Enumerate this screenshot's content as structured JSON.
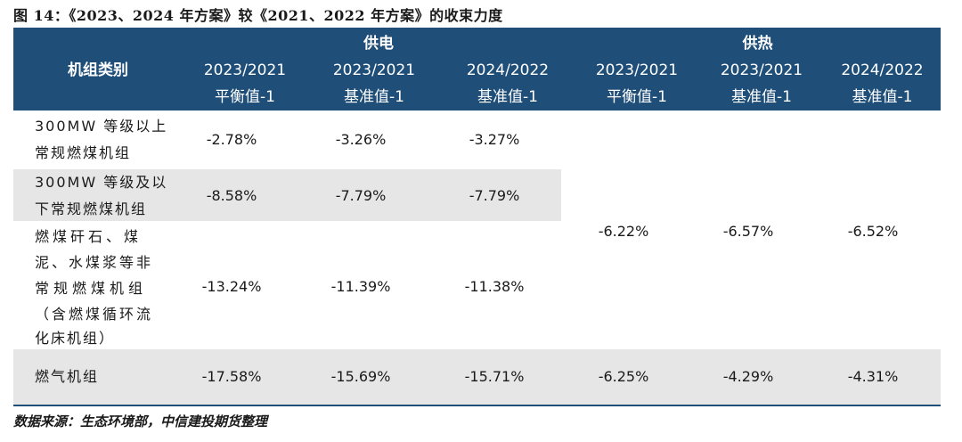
{
  "caption": "图 14：《2023、2024 年方案》较《2021、2022 年方案》的收束力度",
  "header": {
    "category": "机组类别",
    "group_power": "供电",
    "group_heat": "供热",
    "columns": [
      {
        "line1": "2023/2021",
        "line2": "平衡值-1"
      },
      {
        "line1": "2023/2021",
        "line2": "基准值-1"
      },
      {
        "line1": "2024/2022",
        "line2": "基准值-1"
      },
      {
        "line1": "2023/2021",
        "line2": "平衡值-1"
      },
      {
        "line1": "2023/2021",
        "line2": "基准值-1"
      },
      {
        "line1": "2024/2022",
        "line2": "基准值-1"
      }
    ]
  },
  "rows": [
    {
      "lines": [
        "300MW 等级以上",
        "常规燃煤机组"
      ],
      "power": [
        "-2.78%",
        "-3.26%",
        "-3.27%"
      ]
    },
    {
      "lines": [
        "300MW 等级及以",
        "下常规燃煤机组"
      ],
      "power": [
        "-8.58%",
        "-7.79%",
        "-7.79%"
      ]
    },
    {
      "lines": [
        "燃煤矸石、煤",
        "泥、水煤浆等非",
        "常规燃煤机组",
        "（含燃煤循环流",
        "化床机组）"
      ],
      "power": [
        "-13.24%",
        "-11.39%",
        "-11.38%"
      ]
    },
    {
      "lines": [
        "燃气机组"
      ],
      "power": [
        "-17.58%",
        "-15.69%",
        "-15.71%"
      ],
      "heat": [
        "-6.25%",
        "-4.29%",
        "-4.31%"
      ]
    }
  ],
  "heat_merged": [
    "-6.22%",
    "-6.57%",
    "-6.52%"
  ],
  "source": "数据来源：生态环境部，中信建投期货整理"
}
